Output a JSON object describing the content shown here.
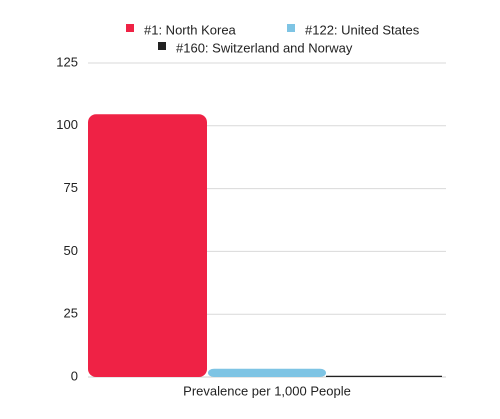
{
  "chart_data": {
    "type": "bar",
    "categories": [
      "Prevalence per 1,000 People"
    ],
    "series": [
      {
        "name": "#1: North Korea",
        "values": [
          104.6
        ],
        "color": "#ef2245"
      },
      {
        "name": "#122: United States",
        "values": [
          3.3
        ],
        "color": "#7ec4e4"
      },
      {
        "name": "#160: Switzerland and Norway",
        "values": [
          0.5
        ],
        "color": "#222222"
      }
    ],
    "title": "",
    "xlabel": "Prevalence per 1,000 People",
    "ylabel": "",
    "ylim": [
      0,
      125
    ],
    "yticks": [
      0,
      25,
      50,
      75,
      100,
      125
    ],
    "grid": true,
    "legend_position": "top-center"
  }
}
